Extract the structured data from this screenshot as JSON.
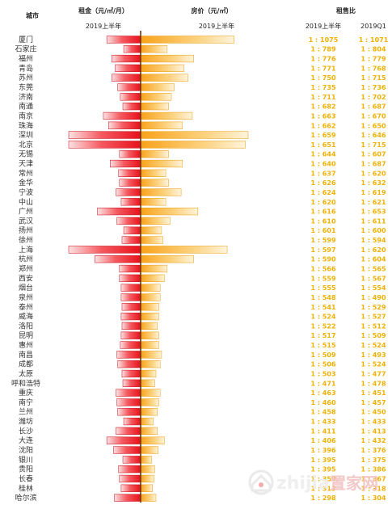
{
  "headers": {
    "city": "城市",
    "rent": "租金（元/㎡/月）",
    "price": "房价（元/㎡）",
    "ratio": "租售比",
    "period_rent": "2019上半年",
    "period_price": "2019上半年",
    "ratio_h1": "2019上半年",
    "ratio_q1": "2019Q1"
  },
  "watermark": {
    "brand": "zhijia",
    "cn": "置家网",
    "icon": "house-logo-icon"
  },
  "colors": {
    "rent": "#ee1c25",
    "price": "#fbb033",
    "ratio_text": "#f0b000",
    "divider": "#6b3a12"
  },
  "chart_data": {
    "type": "bar",
    "series": [
      {
        "name": "租金（元/㎡/月）",
        "unit": "元/㎡/月",
        "xlim": [
          0,
          85
        ]
      },
      {
        "name": "房价（元/㎡）",
        "unit": "元/㎡",
        "xlim": [
          0,
          110000
        ]
      }
    ],
    "rows": [
      {
        "city": "厦门",
        "rent": 40,
        "price": 67000,
        "ratio_h1": "1 : 1075",
        "ratio_q1": "1 : 1071"
      },
      {
        "city": "石家庄",
        "rent": 20,
        "price": 19000,
        "ratio_h1": "1 : 789",
        "ratio_q1": "1 : 804"
      },
      {
        "city": "福州",
        "rent": 34,
        "price": 38000,
        "ratio_h1": "1 : 776",
        "ratio_q1": "1 : 779"
      },
      {
        "city": "青岛",
        "rent": 30,
        "price": 31000,
        "ratio_h1": "1 : 771",
        "ratio_q1": "1 : 768"
      },
      {
        "city": "苏州",
        "rent": 34,
        "price": 34000,
        "ratio_h1": "1 : 750",
        "ratio_q1": "1 : 715"
      },
      {
        "city": "东莞",
        "rent": 27,
        "price": 24000,
        "ratio_h1": "1 : 735",
        "ratio_q1": "1 : 736"
      },
      {
        "city": "济南",
        "rent": 24,
        "price": 22000,
        "ratio_h1": "1 : 711",
        "ratio_q1": "1 : 702"
      },
      {
        "city": "南通",
        "rent": 21,
        "price": 20000,
        "ratio_h1": "1 : 682",
        "ratio_q1": "1 : 687"
      },
      {
        "city": "南京",
        "rent": 44,
        "price": 37000,
        "ratio_h1": "1 : 663",
        "ratio_q1": "1 : 670"
      },
      {
        "city": "珠海",
        "rent": 38,
        "price": 30000,
        "ratio_h1": "1 : 662",
        "ratio_q1": "1 : 650"
      },
      {
        "city": "深圳",
        "rent": 89,
        "price": 77000,
        "ratio_h1": "1 : 659",
        "ratio_q1": "1 : 646"
      },
      {
        "city": "北京",
        "rent": 86,
        "price": 75000,
        "ratio_h1": "1 : 651",
        "ratio_q1": "1 : 715"
      },
      {
        "city": "无锡",
        "rent": 25,
        "price": 20000,
        "ratio_h1": "1 : 644",
        "ratio_q1": "1 : 607"
      },
      {
        "city": "天津",
        "rent": 36,
        "price": 30000,
        "ratio_h1": "1 : 640",
        "ratio_q1": "1 : 687"
      },
      {
        "city": "常州",
        "rent": 26,
        "price": 18000,
        "ratio_h1": "1 : 637",
        "ratio_q1": "1 : 620"
      },
      {
        "city": "金华",
        "rent": 25,
        "price": 20000,
        "ratio_h1": "1 : 626",
        "ratio_q1": "1 : 632"
      },
      {
        "city": "宁波",
        "rent": 29,
        "price": 29000,
        "ratio_h1": "1 : 624",
        "ratio_q1": "1 : 619"
      },
      {
        "city": "中山",
        "rent": 23,
        "price": 18000,
        "ratio_h1": "1 : 620",
        "ratio_q1": "1 : 621"
      },
      {
        "city": "广州",
        "rent": 51,
        "price": 41000,
        "ratio_h1": "1 : 616",
        "ratio_q1": "1 : 653"
      },
      {
        "city": "武汉",
        "rent": 28,
        "price": 21000,
        "ratio_h1": "1 : 610",
        "ratio_q1": "1 : 611"
      },
      {
        "city": "扬州",
        "rent": 20,
        "price": 15000,
        "ratio_h1": "1 : 601",
        "ratio_q1": "1 : 600"
      },
      {
        "city": "徐州",
        "rent": 22,
        "price": 16000,
        "ratio_h1": "1 : 599",
        "ratio_q1": "1 : 594"
      },
      {
        "city": "上海",
        "rent": 86,
        "price": 62000,
        "ratio_h1": "1 : 597",
        "ratio_q1": "1 : 620"
      },
      {
        "city": "杭州",
        "rent": 54,
        "price": 38000,
        "ratio_h1": "1 : 590",
        "ratio_q1": "1 : 604"
      },
      {
        "city": "郑州",
        "rent": 25,
        "price": 19000,
        "ratio_h1": "1 : 566",
        "ratio_q1": "1 : 565"
      },
      {
        "city": "西安",
        "rent": 25,
        "price": 17000,
        "ratio_h1": "1 : 559",
        "ratio_q1": "1 : 567"
      },
      {
        "city": "烟台",
        "rent": 23,
        "price": 14000,
        "ratio_h1": "1 : 555",
        "ratio_q1": "1 : 554"
      },
      {
        "city": "泉州",
        "rent": 23,
        "price": 14000,
        "ratio_h1": "1 : 548",
        "ratio_q1": "1 : 490"
      },
      {
        "city": "泰州",
        "rent": 22,
        "price": 13000,
        "ratio_h1": "1 : 541",
        "ratio_q1": "1 : 529"
      },
      {
        "city": "威海",
        "rent": 23,
        "price": 13000,
        "ratio_h1": "1 : 524",
        "ratio_q1": "1 : 527"
      },
      {
        "city": "洛阳",
        "rent": 22,
        "price": 12000,
        "ratio_h1": "1 : 522",
        "ratio_q1": "1 : 512"
      },
      {
        "city": "昆明",
        "rent": 23,
        "price": 13000,
        "ratio_h1": "1 : 517",
        "ratio_q1": "1 : 509"
      },
      {
        "city": "惠州",
        "rent": 24,
        "price": 13000,
        "ratio_h1": "1 : 515",
        "ratio_q1": "1 : 524"
      },
      {
        "city": "南昌",
        "rent": 28,
        "price": 15000,
        "ratio_h1": "1 : 509",
        "ratio_q1": "1 : 493"
      },
      {
        "city": "成都",
        "rent": 27,
        "price": 14000,
        "ratio_h1": "1 : 506",
        "ratio_q1": "1 : 524"
      },
      {
        "city": "太原",
        "rent": 22,
        "price": 11000,
        "ratio_h1": "1 : 503",
        "ratio_q1": "1 : 477"
      },
      {
        "city": "呼和浩特",
        "rent": 21,
        "price": 10000,
        "ratio_h1": "1 : 471",
        "ratio_q1": "1 : 478"
      },
      {
        "city": "重庆",
        "rent": 29,
        "price": 14000,
        "ratio_h1": "1 : 463",
        "ratio_q1": "1 : 451"
      },
      {
        "city": "南宁",
        "rent": 28,
        "price": 13000,
        "ratio_h1": "1 : 460",
        "ratio_q1": "1 : 457"
      },
      {
        "city": "兰州",
        "rent": 27,
        "price": 12000,
        "ratio_h1": "1 : 458",
        "ratio_q1": "1 : 450"
      },
      {
        "city": "潍坊",
        "rent": 20,
        "price": 9000,
        "ratio_h1": "1 : 433",
        "ratio_q1": "1 : 433"
      },
      {
        "city": "长沙",
        "rent": 29,
        "price": 12000,
        "ratio_h1": "1 : 411",
        "ratio_q1": "1 : 413"
      },
      {
        "city": "大连",
        "rent": 40,
        "price": 17000,
        "ratio_h1": "1 : 406",
        "ratio_q1": "1 : 432"
      },
      {
        "city": "沈阳",
        "rent": 32,
        "price": 12500,
        "ratio_h1": "1 : 396",
        "ratio_q1": "1 : 376"
      },
      {
        "city": "银川",
        "rent": 21,
        "price": 8000,
        "ratio_h1": "1 : 395",
        "ratio_q1": "1 : 375"
      },
      {
        "city": "贵阳",
        "rent": 26,
        "price": 10000,
        "ratio_h1": "1 : 395",
        "ratio_q1": "1 : 386"
      },
      {
        "city": "长春",
        "rent": 25,
        "price": 9500,
        "ratio_h1": "1 : 359",
        "ratio_q1": "1 : 367"
      },
      {
        "city": "桂林",
        "rent": 23,
        "price": 8500,
        "ratio_h1": "1 : 313",
        "ratio_q1": "1 : 318"
      },
      {
        "city": "哈尔滨",
        "rent": 31,
        "price": 11000,
        "ratio_h1": "1 : 298",
        "ratio_q1": "1 : 304"
      }
    ]
  }
}
